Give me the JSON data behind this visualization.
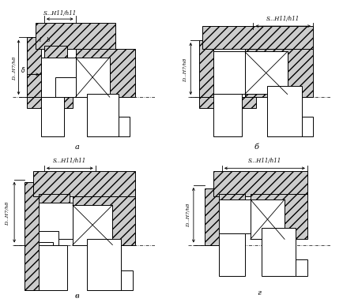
{
  "bg_color": "#ffffff",
  "hatch_gray": "#d0d0d0",
  "label_a": "a",
  "label_b": "б",
  "label_c": "в",
  "label_d": "г",
  "dim_S": "S...H11/h11",
  "dim_D": "D...H7/h8",
  "fig_width": 4.34,
  "fig_height": 3.83
}
